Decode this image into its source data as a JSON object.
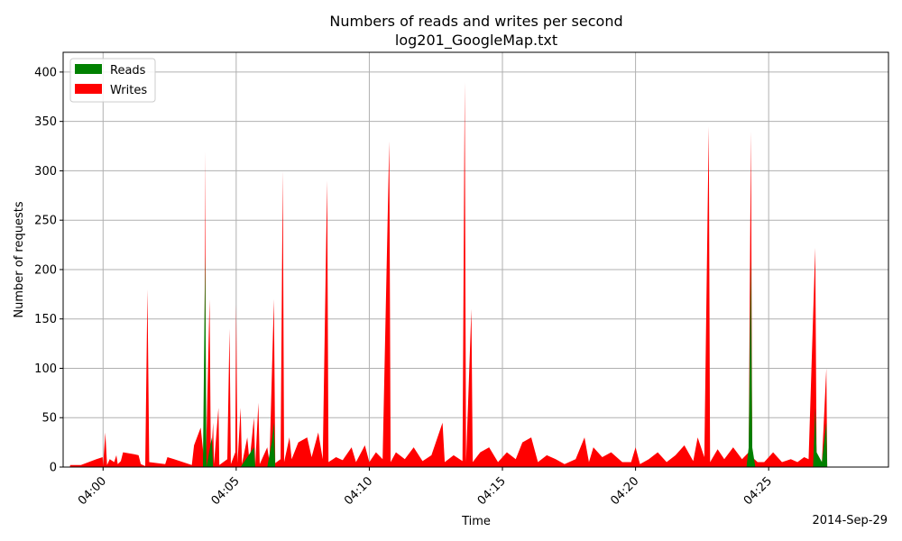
{
  "chart_data": {
    "type": "area",
    "title": "Numbers of reads and writes per second",
    "subtitle": "log201_GoogleMap.txt",
    "xlabel": "Time",
    "ylabel": "Number of requests",
    "date_label": "2014-Sep-29",
    "x_range": [
      "03:58:30",
      "04:29:30"
    ],
    "ylim": [
      0,
      420
    ],
    "x_ticks": [
      "04:00",
      "04:05",
      "04:10",
      "04:15",
      "04:20",
      "04:25"
    ],
    "y_ticks": [
      0,
      50,
      100,
      150,
      200,
      250,
      300,
      350,
      400
    ],
    "grid": true,
    "legend": {
      "location": "top-left",
      "entries": [
        "Reads",
        "Writes"
      ]
    },
    "colors": {
      "reads": "#008000",
      "writes": "#ff0000",
      "grid": "#b0b0b0"
    },
    "series": [
      {
        "name": "Writes",
        "color": "#ff0000",
        "points": [
          [
            "03:58:45",
            0
          ],
          [
            "03:58:46",
            2
          ],
          [
            "03:59:10",
            2
          ],
          [
            "03:59:45",
            8
          ],
          [
            "03:59:59",
            10
          ],
          [
            "04:00:00",
            1
          ],
          [
            "04:00:05",
            35
          ],
          [
            "04:00:09",
            2
          ],
          [
            "04:00:15",
            8
          ],
          [
            "04:00:25",
            5
          ],
          [
            "04:00:30",
            12
          ],
          [
            "04:00:33",
            3
          ],
          [
            "04:00:40",
            6
          ],
          [
            "04:00:45",
            15
          ],
          [
            "04:01:10",
            13
          ],
          [
            "04:01:20",
            12
          ],
          [
            "04:01:25",
            3
          ],
          [
            "04:01:35",
            1
          ],
          [
            "04:01:40",
            180
          ],
          [
            "04:01:44",
            5
          ],
          [
            "04:02:20",
            3
          ],
          [
            "04:02:25",
            10
          ],
          [
            "04:02:40",
            8
          ],
          [
            "04:03:00",
            5
          ],
          [
            "04:03:20",
            2
          ],
          [
            "04:03:25",
            22
          ],
          [
            "04:03:40",
            40
          ],
          [
            "04:03:48",
            5
          ],
          [
            "04:03:50",
            320
          ],
          [
            "04:03:52",
            10
          ],
          [
            "04:04:00",
            170
          ],
          [
            "04:04:03",
            5
          ],
          [
            "04:04:08",
            45
          ],
          [
            "04:04:10",
            3
          ],
          [
            "04:04:20",
            60
          ],
          [
            "04:04:22",
            2
          ],
          [
            "04:04:40",
            8
          ],
          [
            "04:04:45",
            140
          ],
          [
            "04:04:48",
            3
          ],
          [
            "04:04:58",
            15
          ],
          [
            "04:05:00",
            165
          ],
          [
            "04:05:03",
            4
          ],
          [
            "04:05:10",
            60
          ],
          [
            "04:05:13",
            3
          ],
          [
            "04:05:25",
            30
          ],
          [
            "04:05:30",
            5
          ],
          [
            "04:05:40",
            50
          ],
          [
            "04:05:43",
            2
          ],
          [
            "04:05:50",
            65
          ],
          [
            "04:05:53",
            3
          ],
          [
            "04:06:10",
            20
          ],
          [
            "04:06:15",
            5
          ],
          [
            "04:06:25",
            170
          ],
          [
            "04:06:28",
            4
          ],
          [
            "04:06:40",
            8
          ],
          [
            "04:06:45",
            300
          ],
          [
            "04:06:48",
            5
          ],
          [
            "04:07:00",
            30
          ],
          [
            "04:07:05",
            8
          ],
          [
            "04:07:20",
            25
          ],
          [
            "04:07:40",
            30
          ],
          [
            "04:07:50",
            10
          ],
          [
            "04:08:05",
            35
          ],
          [
            "04:08:15",
            8
          ],
          [
            "04:08:25",
            290
          ],
          [
            "04:08:28",
            5
          ],
          [
            "04:08:45",
            10
          ],
          [
            "04:09:00",
            7
          ],
          [
            "04:09:20",
            20
          ],
          [
            "04:09:30",
            5
          ],
          [
            "04:09:50",
            22
          ],
          [
            "04:10:00",
            5
          ],
          [
            "04:10:15",
            15
          ],
          [
            "04:10:30",
            8
          ],
          [
            "04:10:45",
            330
          ],
          [
            "04:10:48",
            5
          ],
          [
            "04:11:00",
            15
          ],
          [
            "04:11:20",
            8
          ],
          [
            "04:11:40",
            20
          ],
          [
            "04:12:00",
            6
          ],
          [
            "04:12:20",
            12
          ],
          [
            "04:12:45",
            45
          ],
          [
            "04:12:50",
            5
          ],
          [
            "04:13:10",
            12
          ],
          [
            "04:13:30",
            6
          ],
          [
            "04:13:35",
            390
          ],
          [
            "04:13:38",
            5
          ],
          [
            "04:13:50",
            160
          ],
          [
            "04:13:53",
            5
          ],
          [
            "04:14:10",
            15
          ],
          [
            "04:14:30",
            20
          ],
          [
            "04:14:50",
            5
          ],
          [
            "04:15:10",
            15
          ],
          [
            "04:15:30",
            8
          ],
          [
            "04:15:45",
            25
          ],
          [
            "04:16:05",
            30
          ],
          [
            "04:16:20",
            5
          ],
          [
            "04:16:40",
            12
          ],
          [
            "04:17:00",
            8
          ],
          [
            "04:17:20",
            3
          ],
          [
            "04:17:45",
            8
          ],
          [
            "04:18:05",
            30
          ],
          [
            "04:18:15",
            5
          ],
          [
            "04:18:25",
            20
          ],
          [
            "04:18:45",
            10
          ],
          [
            "04:19:05",
            15
          ],
          [
            "04:19:30",
            5
          ],
          [
            "04:19:50",
            5
          ],
          [
            "04:20:00",
            20
          ],
          [
            "04:20:10",
            3
          ],
          [
            "04:20:30",
            8
          ],
          [
            "04:20:50",
            15
          ],
          [
            "04:21:10",
            5
          ],
          [
            "04:21:30",
            12
          ],
          [
            "04:21:50",
            22
          ],
          [
            "04:22:10",
            6
          ],
          [
            "04:22:20",
            30
          ],
          [
            "04:22:35",
            10
          ],
          [
            "04:22:45",
            345
          ],
          [
            "04:22:48",
            5
          ],
          [
            "04:23:05",
            18
          ],
          [
            "04:23:20",
            8
          ],
          [
            "04:23:40",
            20
          ],
          [
            "04:24:00",
            8
          ],
          [
            "04:24:15",
            15
          ],
          [
            "04:24:20",
            340
          ],
          [
            "04:24:23",
            10
          ],
          [
            "04:24:35",
            5
          ],
          [
            "04:24:50",
            5
          ],
          [
            "04:25:10",
            15
          ],
          [
            "04:25:30",
            5
          ],
          [
            "04:25:50",
            8
          ],
          [
            "04:26:05",
            5
          ],
          [
            "04:26:20",
            10
          ],
          [
            "04:26:30",
            8
          ],
          [
            "04:26:45",
            222
          ],
          [
            "04:26:48",
            10
          ],
          [
            "04:27:00",
            5
          ],
          [
            "04:27:10",
            100
          ],
          [
            "04:27:12",
            0
          ]
        ]
      },
      {
        "name": "Reads",
        "color": "#008000",
        "points": [
          [
            "03:58:45",
            0
          ],
          [
            "04:03:45",
            0
          ],
          [
            "04:03:50",
            215
          ],
          [
            "04:03:53",
            0
          ],
          [
            "04:04:05",
            30
          ],
          [
            "04:04:08",
            0
          ],
          [
            "04:05:10",
            0
          ],
          [
            "04:05:40",
            20
          ],
          [
            "04:05:43",
            0
          ],
          [
            "04:06:10",
            0
          ],
          [
            "04:06:20",
            25
          ],
          [
            "04:06:25",
            45
          ],
          [
            "04:06:28",
            0
          ],
          [
            "04:24:10",
            0
          ],
          [
            "04:24:15",
            20
          ],
          [
            "04:24:20",
            210
          ],
          [
            "04:24:23",
            20
          ],
          [
            "04:24:30",
            0
          ],
          [
            "04:26:40",
            0
          ],
          [
            "04:26:45",
            60
          ],
          [
            "04:26:48",
            15
          ],
          [
            "04:27:00",
            5
          ],
          [
            "04:27:10",
            45
          ],
          [
            "04:27:12",
            0
          ]
        ]
      }
    ]
  }
}
